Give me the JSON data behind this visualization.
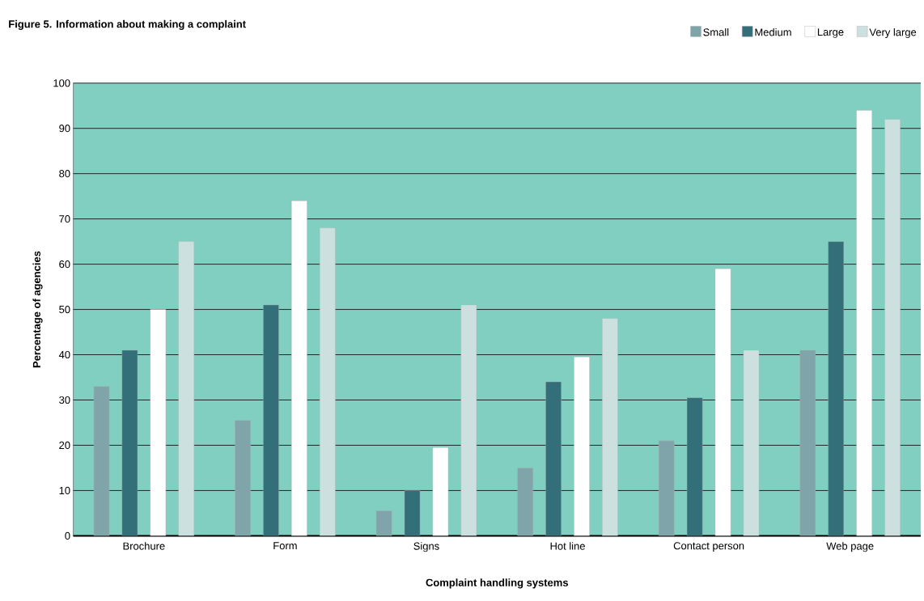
{
  "chart_data": {
    "type": "bar",
    "title": "Figure 5.    Information about making a complaint",
    "xlabel": "Complaint handling systems",
    "ylabel": "Percentage of agencies",
    "categories": [
      "Brochure",
      "Form",
      "Signs",
      "Hot line",
      "Contact person",
      "Web page"
    ],
    "series": [
      {
        "name": "Small",
        "color": "#7fa5aa",
        "values": [
          33,
          25.5,
          5.5,
          15,
          21,
          41
        ]
      },
      {
        "name": "Medium",
        "color": "#336f78",
        "values": [
          41,
          51,
          10,
          34,
          30.5,
          65
        ]
      },
      {
        "name": "Large",
        "color": "#ffffff",
        "values": [
          50,
          74,
          19.5,
          39.5,
          59,
          94
        ]
      },
      {
        "name": "Very large",
        "color": "#cde0e0",
        "values": [
          65,
          68,
          51,
          48,
          41,
          92
        ]
      }
    ],
    "ylim": [
      0,
      100
    ],
    "yticks": [
      0,
      10,
      20,
      30,
      40,
      50,
      60,
      70,
      80,
      90,
      100
    ],
    "grid": "y",
    "legend": "top right"
  }
}
